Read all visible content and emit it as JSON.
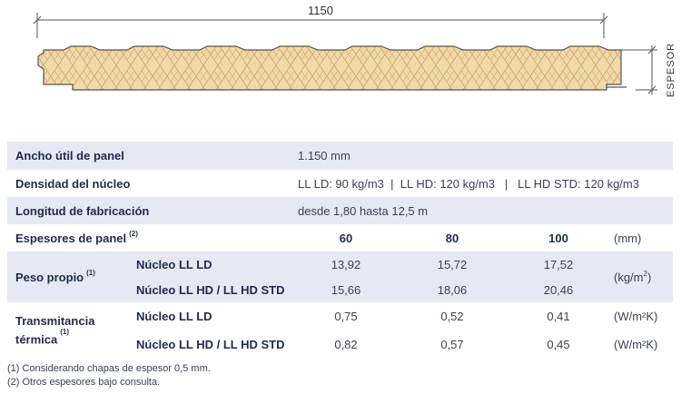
{
  "drawing": {
    "width_label": "1150",
    "thickness_label": "ESPESOR"
  },
  "table": {
    "ancho_label": "Ancho útil de panel",
    "ancho_value": "1.150 mm",
    "densidad_label": "Densidad del núcleo",
    "densidad_value": "LL LD: 90 kg/m3  |  LL HD: 120 kg/m3   |   LL HD STD: 120 kg/m3",
    "longitud_label": "Longitud de fabricación",
    "longitud_value": "desde 1,80 hasta 12,5 m",
    "espesores_label": "Espesores de panel",
    "espesores_note": "(2)",
    "thicknesses": [
      "60",
      "80",
      "100"
    ],
    "thickness_unit": "(mm)",
    "peso_label": "Peso propio",
    "peso_note": "(1)",
    "peso_rows": [
      {
        "core": "Núcleo LL LD",
        "values": [
          "13,92",
          "15,72",
          "17,52"
        ]
      },
      {
        "core": "Núcleo LL HD / LL HD STD",
        "values": [
          "15,66",
          "18,06",
          "20,46"
        ]
      }
    ],
    "peso_unit": "(kg/m",
    "peso_unit_sup": "2",
    "peso_unit_end": ")",
    "trans_label_1": "Transmitancia",
    "trans_label_2": "térmica",
    "trans_note": "(1)",
    "trans_rows": [
      {
        "core": "Núcleo LL LD",
        "values": [
          "0,75",
          "0,52",
          "0,41"
        ],
        "unit": "(W/m²K)"
      },
      {
        "core": "Núcleo LL HD / LL HD STD",
        "values": [
          "0,82",
          "0,57",
          "0,45"
        ],
        "unit": "(W/m²K)"
      }
    ]
  },
  "footnotes": [
    "(1) Considerando chapas de espesor 0,5 mm.",
    "(2) Otros espesores bajo consulta."
  ]
}
